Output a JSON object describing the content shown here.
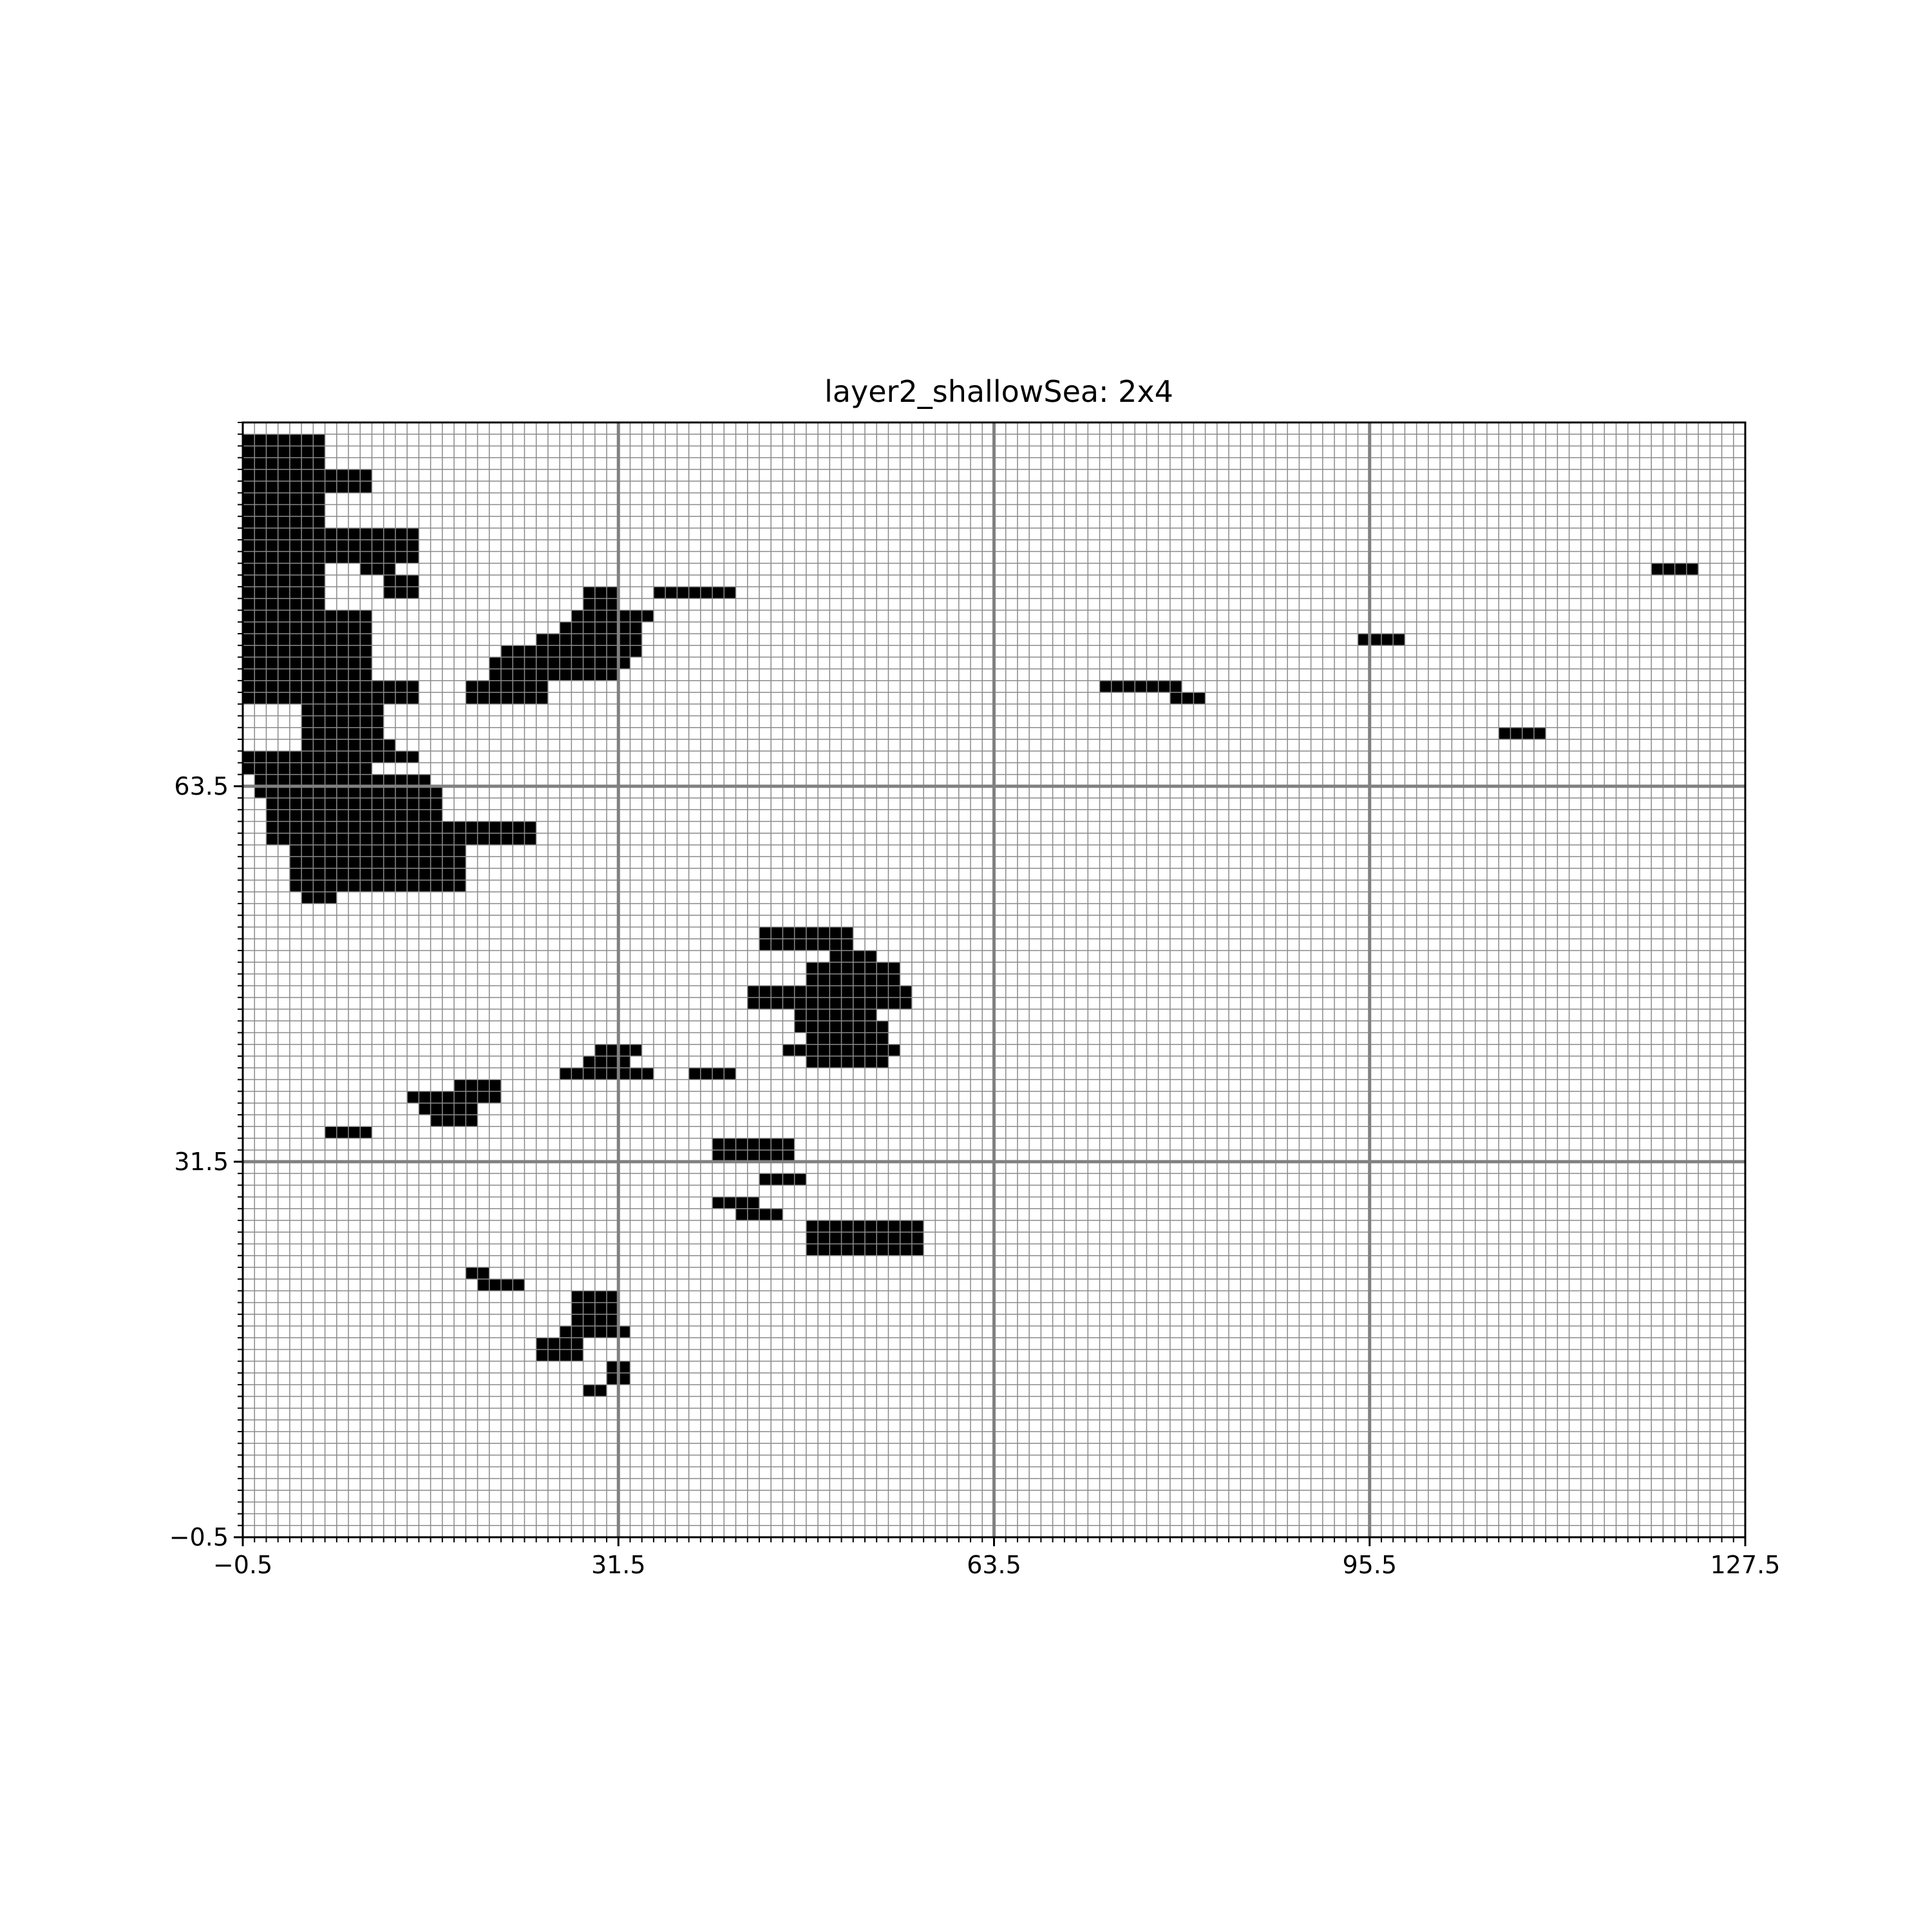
{
  "chart_data": {
    "type": "heatmap",
    "title": "layer2_shallowSea: 2x4",
    "xlabel": "",
    "ylabel": "",
    "xlim": [
      -0.5,
      127.5
    ],
    "ylim": [
      -0.5,
      94.5
    ],
    "xticks": [
      -0.5,
      31.5,
      63.5,
      95.5,
      127.5
    ],
    "xtick_labels": [
      "−0.5",
      "31.5",
      "63.5",
      "95.5",
      "127.5"
    ],
    "yticks": [
      -0.5,
      31.5,
      63.5
    ],
    "ytick_labels": [
      "−0.5",
      "31.5",
      "63.5"
    ],
    "grid": true,
    "minor_grid_step": 1,
    "fill_color": "#000000",
    "empty_color": "#ffffff",
    "grid_color": "#808080",
    "filled_runs": [
      [
        93,
        0,
        7
      ],
      [
        92,
        0,
        7
      ],
      [
        91,
        0,
        7
      ],
      [
        90,
        0,
        11
      ],
      [
        89,
        0,
        11
      ],
      [
        88,
        0,
        7
      ],
      [
        87,
        0,
        7
      ],
      [
        86,
        0,
        7
      ],
      [
        85,
        0,
        15
      ],
      [
        84,
        0,
        15
      ],
      [
        83,
        0,
        15
      ],
      [
        82,
        0,
        7
      ],
      [
        82,
        10,
        13
      ],
      [
        81,
        0,
        7
      ],
      [
        81,
        12,
        15
      ],
      [
        80,
        0,
        7
      ],
      [
        80,
        12,
        15
      ],
      [
        80,
        29,
        32
      ],
      [
        80,
        35,
        42
      ],
      [
        79,
        0,
        7
      ],
      [
        79,
        29,
        32
      ],
      [
        78,
        0,
        11
      ],
      [
        78,
        28,
        35
      ],
      [
        77,
        0,
        11
      ],
      [
        77,
        27,
        34
      ],
      [
        76,
        0,
        11
      ],
      [
        76,
        25,
        34
      ],
      [
        75,
        0,
        11
      ],
      [
        75,
        22,
        34
      ],
      [
        74,
        0,
        11
      ],
      [
        74,
        21,
        33
      ],
      [
        73,
        0,
        11
      ],
      [
        73,
        21,
        32
      ],
      [
        72,
        0,
        15
      ],
      [
        72,
        19,
        26
      ],
      [
        72,
        73,
        80
      ],
      [
        71,
        0,
        15
      ],
      [
        71,
        19,
        26
      ],
      [
        71,
        79,
        82
      ],
      [
        70,
        5,
        12
      ],
      [
        69,
        5,
        12
      ],
      [
        68,
        5,
        12
      ],
      [
        67,
        5,
        13
      ],
      [
        66,
        0,
        15
      ],
      [
        65,
        0,
        11
      ],
      [
        64,
        1,
        16
      ],
      [
        63,
        1,
        17
      ],
      [
        62,
        2,
        17
      ],
      [
        61,
        2,
        17
      ],
      [
        60,
        2,
        25
      ],
      [
        59,
        2,
        25
      ],
      [
        58,
        4,
        19
      ],
      [
        57,
        4,
        19
      ],
      [
        56,
        4,
        19
      ],
      [
        55,
        4,
        19
      ],
      [
        54,
        5,
        8
      ],
      [
        51,
        44,
        52
      ],
      [
        50,
        44,
        52
      ],
      [
        49,
        50,
        54
      ],
      [
        48,
        48,
        56
      ],
      [
        47,
        48,
        56
      ],
      [
        46,
        43,
        47
      ],
      [
        46,
        47,
        57
      ],
      [
        45,
        43,
        47
      ],
      [
        45,
        47,
        57
      ],
      [
        44,
        47,
        54
      ],
      [
        43,
        47,
        55
      ],
      [
        42,
        48,
        55
      ],
      [
        41,
        30,
        34
      ],
      [
        41,
        46,
        56
      ],
      [
        40,
        29,
        33
      ],
      [
        40,
        48,
        55
      ],
      [
        39,
        27,
        35
      ],
      [
        39,
        38,
        42
      ],
      [
        38,
        18,
        22
      ],
      [
        37,
        14,
        22
      ],
      [
        36,
        15,
        20
      ],
      [
        35,
        16,
        20
      ],
      [
        34,
        7,
        11
      ],
      [
        33,
        40,
        47
      ],
      [
        32,
        40,
        47
      ],
      [
        26,
        48,
        58
      ],
      [
        25,
        48,
        58
      ],
      [
        24,
        48,
        58
      ],
      [
        20,
        28,
        32
      ],
      [
        19,
        28,
        32
      ],
      [
        18,
        28,
        32
      ],
      [
        17,
        27,
        33
      ],
      [
        16,
        25,
        29
      ],
      [
        15,
        25,
        29
      ],
      [
        14,
        31,
        33
      ],
      [
        13,
        31,
        33
      ],
      [
        12,
        29,
        31
      ],
      [
        82,
        120,
        124
      ],
      [
        76,
        95,
        99
      ],
      [
        68,
        107,
        111
      ],
      [
        30,
        44,
        48
      ],
      [
        28,
        40,
        44
      ],
      [
        27,
        42,
        46
      ],
      [
        22,
        19,
        21
      ],
      [
        21,
        20,
        24
      ]
    ]
  }
}
